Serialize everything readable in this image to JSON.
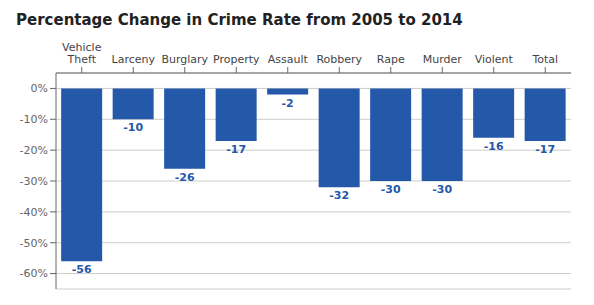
{
  "chart_data": {
    "type": "bar",
    "title": "Percentage Change in Crime Rate from 2005 to 2014",
    "categories": [
      "Vehicle\nTheft",
      "Larceny",
      "Burglary",
      "Property",
      "Assault",
      "Robbery",
      "Rape",
      "Murder",
      "Violent",
      "Total"
    ],
    "values": [
      -56,
      -10,
      -26,
      -17,
      -2,
      -32,
      -30,
      -30,
      -16,
      -17
    ],
    "color": "#2458A8",
    "ylim": [
      -65,
      5
    ],
    "yticks": [
      {
        "value": 0,
        "label": "0%"
      },
      {
        "value": -10,
        "label": "-10%"
      },
      {
        "value": -20,
        "label": "-20%"
      },
      {
        "value": -30,
        "label": "-30%"
      },
      {
        "value": -40,
        "label": "-40%"
      },
      {
        "value": -50,
        "label": "-50%"
      },
      {
        "value": -60,
        "label": "-60%"
      }
    ],
    "grid": true,
    "data_labels": true
  }
}
